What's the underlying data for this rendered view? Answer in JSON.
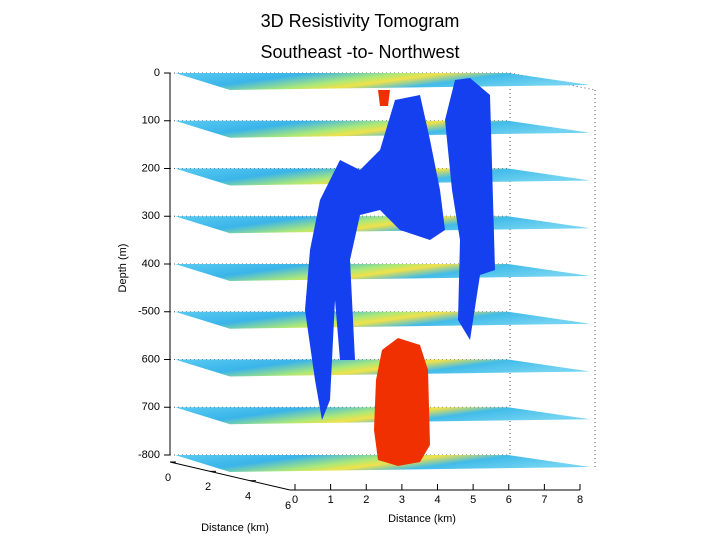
{
  "chart_data": {
    "type": "slices3d",
    "title": "3D Resistivity Tomogram",
    "subtitle": "Southeast -to- Northwest",
    "zlabel": "Depth (m)",
    "xlabel": "Distance (km)",
    "ylabel": "Distance (km)",
    "zlim": [
      0,
      -800
    ],
    "zticks": [
      0,
      {
        "value": -100,
        "label": "100"
      },
      {
        "value": -200,
        "label": "200"
      },
      {
        "value": -300,
        "label": "300"
      },
      {
        "value": -400,
        "label": "400"
      },
      -500,
      {
        "value": -600,
        "label": "600"
      },
      {
        "value": -700,
        "label": "700"
      },
      -800
    ],
    "xlim": [
      0,
      8
    ],
    "xticks": [
      0,
      1,
      2,
      3,
      4,
      5,
      6,
      7,
      8
    ],
    "ylim": [
      0,
      6
    ],
    "yticks": [
      0,
      2,
      4,
      6
    ],
    "grid": true
  }
}
